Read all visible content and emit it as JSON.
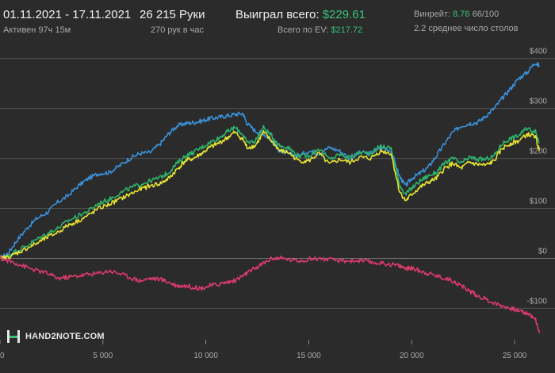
{
  "header": {
    "date_range": "01.11.2021 - 17.11.2021",
    "active_time": "Активен 97ч 15м",
    "hands": "26 215 Руки",
    "hands_per_hour": "270 рук в час",
    "won_label": "Выиграл всего:",
    "won_value": "$229.61",
    "ev_label": "Всего по EV:",
    "ev_value": "$217.72",
    "winrate_label": "Винрейт:",
    "winrate_value": "8.76",
    "winrate_extra": "66/100",
    "tables_avg": "2.2 среднее число столов"
  },
  "logo": {
    "text": "HAND2NOTE.COM"
  },
  "chart_data": {
    "type": "line",
    "xlabel": "",
    "ylabel": "",
    "xlim": [
      0,
      26500
    ],
    "ylim": [
      -155,
      425
    ],
    "x_ticks": [
      0,
      5000,
      10000,
      15000,
      20000,
      25000
    ],
    "x_tick_labels": [
      "0",
      "5 000",
      "10 000",
      "15 000",
      "20 000",
      "25 000"
    ],
    "y_ticks": [
      -100,
      0,
      100,
      200,
      300,
      400
    ],
    "y_tick_labels": [
      "-$100",
      "$0",
      "$100",
      "$200",
      "$300",
      "$400"
    ],
    "grid": true,
    "series": [
      {
        "color": "#3b8fd8",
        "x": [
          0,
          400,
          800,
          1300,
          1800,
          2300,
          2800,
          3300,
          3800,
          4300,
          4800,
          5300,
          5800,
          6300,
          6800,
          7300,
          7800,
          8200,
          8600,
          9000,
          9400,
          9800,
          10200,
          10600,
          11000,
          11400,
          11800,
          12000,
          12400,
          12800,
          13200,
          13600,
          14000,
          14500,
          15000,
          15500,
          16000,
          16500,
          17000,
          17500,
          18000,
          18500,
          19000,
          19400,
          19700,
          20000,
          20400,
          20800,
          21200,
          21600,
          22000,
          22400,
          22800,
          23200,
          23600,
          24000,
          24400,
          24800,
          25200,
          25600,
          26000,
          26200
        ],
        "y": [
          0,
          10,
          35,
          60,
          80,
          92,
          112,
          125,
          145,
          160,
          170,
          172,
          185,
          200,
          210,
          212,
          230,
          250,
          265,
          270,
          272,
          275,
          280,
          282,
          285,
          288,
          290,
          270,
          255,
          250,
          235,
          215,
          210,
          205,
          215,
          210,
          222,
          215,
          200,
          212,
          210,
          222,
          215,
          165,
          145,
          160,
          170,
          182,
          205,
          230,
          252,
          265,
          270,
          272,
          285,
          300,
          320,
          340,
          360,
          372,
          392,
          385
        ]
      },
      {
        "color": "#2db36a",
        "x": [
          0,
          400,
          800,
          1300,
          1800,
          2300,
          2800,
          3300,
          3800,
          4300,
          4800,
          5300,
          5800,
          6300,
          6800,
          7300,
          7800,
          8200,
          8600,
          9000,
          9400,
          9800,
          10200,
          10600,
          11000,
          11400,
          11800,
          12000,
          12400,
          12800,
          13200,
          13600,
          14000,
          14500,
          15000,
          15500,
          16000,
          16500,
          17000,
          17500,
          18000,
          18500,
          19000,
          19400,
          19700,
          20000,
          20400,
          20800,
          21200,
          21600,
          22000,
          22400,
          22800,
          23200,
          23600,
          24000,
          24400,
          24800,
          25200,
          25600,
          26000,
          26200
        ],
        "y": [
          0,
          5,
          15,
          25,
          38,
          50,
          60,
          75,
          85,
          95,
          110,
          118,
          130,
          140,
          148,
          155,
          162,
          172,
          190,
          205,
          212,
          222,
          232,
          240,
          252,
          262,
          248,
          232,
          235,
          262,
          245,
          225,
          222,
          205,
          205,
          220,
          198,
          208,
          202,
          212,
          210,
          225,
          220,
          148,
          128,
          140,
          155,
          165,
          172,
          190,
          200,
          190,
          202,
          198,
          198,
          205,
          230,
          240,
          246,
          260,
          255,
          232
        ]
      },
      {
        "color": "#e6e332",
        "x": [
          0,
          400,
          800,
          1300,
          1800,
          2300,
          2800,
          3300,
          3800,
          4300,
          4800,
          5300,
          5800,
          6300,
          6800,
          7300,
          7800,
          8200,
          8600,
          9000,
          9400,
          9800,
          10200,
          10600,
          11000,
          11400,
          11800,
          12000,
          12400,
          12800,
          13200,
          13600,
          14000,
          14500,
          15000,
          15500,
          16000,
          16500,
          17000,
          17500,
          18000,
          18500,
          19000,
          19400,
          19700,
          20000,
          20400,
          20800,
          21200,
          21600,
          22000,
          22400,
          22800,
          23200,
          23600,
          24000,
          24400,
          24800,
          25200,
          25600,
          26000,
          26200
        ],
        "y": [
          0,
          2,
          10,
          20,
          30,
          42,
          52,
          66,
          75,
          86,
          100,
          108,
          118,
          128,
          138,
          145,
          150,
          160,
          178,
          195,
          200,
          210,
          222,
          230,
          240,
          252,
          238,
          222,
          225,
          252,
          235,
          215,
          212,
          195,
          195,
          210,
          188,
          198,
          192,
          202,
          200,
          215,
          210,
          135,
          115,
          128,
          142,
          152,
          160,
          180,
          190,
          180,
          192,
          188,
          186,
          195,
          220,
          230,
          235,
          248,
          245,
          215
        ]
      },
      {
        "color": "#d83a6a",
        "x": [
          0,
          400,
          800,
          1300,
          1800,
          2300,
          2800,
          3300,
          3800,
          4300,
          4800,
          5300,
          5800,
          6300,
          6800,
          7300,
          7800,
          8200,
          8600,
          9000,
          9400,
          9800,
          10200,
          10600,
          11000,
          11400,
          11800,
          12000,
          12400,
          12800,
          13200,
          13600,
          14000,
          14500,
          15000,
          15500,
          16000,
          16500,
          17000,
          17500,
          18000,
          18500,
          19000,
          19400,
          19700,
          20000,
          20400,
          20800,
          21200,
          21600,
          22000,
          22400,
          22800,
          23200,
          23600,
          24000,
          24400,
          24800,
          25200,
          25600,
          26000,
          26200
        ],
        "y": [
          0,
          -5,
          -10,
          -18,
          -25,
          -30,
          -40,
          -38,
          -35,
          -32,
          -30,
          -25,
          -30,
          -38,
          -45,
          -40,
          -42,
          -48,
          -55,
          -55,
          -58,
          -60,
          -55,
          -52,
          -48,
          -45,
          -35,
          -30,
          -20,
          -10,
          0,
          0,
          -2,
          -5,
          -2,
          0,
          -3,
          -5,
          -5,
          -5,
          -8,
          -10,
          -12,
          -15,
          -20,
          -20,
          -25,
          -30,
          -35,
          -40,
          -45,
          -55,
          -65,
          -75,
          -82,
          -90,
          -95,
          -100,
          -105,
          -110,
          -120,
          -150
        ]
      }
    ]
  }
}
